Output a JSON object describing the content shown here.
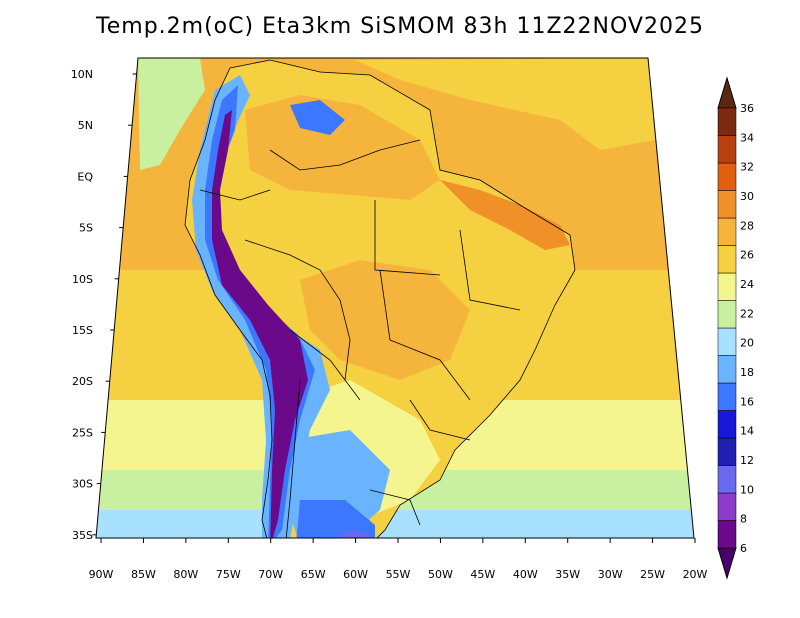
{
  "title": "Temp.2m(oC) Eta3km SiSMOM 83h 11Z22NOV2025",
  "axes": {
    "lon_labels": [
      "90W",
      "85W",
      "80W",
      "75W",
      "70W",
      "65W",
      "60W",
      "55W",
      "50W",
      "45W",
      "40W",
      "35W",
      "30W",
      "25W",
      "20W"
    ],
    "lat_labels": [
      "10N",
      "5N",
      "EQ",
      "5S",
      "10S",
      "15S",
      "20S",
      "25S",
      "30S",
      "35S"
    ]
  },
  "colorbar": {
    "labels": [
      "6",
      "8",
      "10",
      "12",
      "14",
      "16",
      "18",
      "20",
      "22",
      "24",
      "26",
      "28",
      "30",
      "32",
      "34",
      "36"
    ],
    "colors": [
      "#6a0a8a",
      "#8c3cc8",
      "#6a6af0",
      "#2020b0",
      "#1818d8",
      "#3c78ff",
      "#6ab4ff",
      "#a8e0ff",
      "#c8f0a0",
      "#f5f590",
      "#f5d040",
      "#f5b43c",
      "#f09028",
      "#e06010",
      "#b84010",
      "#7a2a10"
    ],
    "low_arrow_color": "#4a0070",
    "high_arrow_color": "#5a2a10"
  },
  "palette": {
    "ocean_warm": "#f5b43c",
    "ocean_mid": "#f5d040",
    "ocean_cool": "#f5f590",
    "ocean_cold": "#c8f0a0",
    "ocean_south": "#a8e0ff",
    "land_main": "#f5d040",
    "land_hot": "#f5b43c",
    "land_hotter": "#f09028",
    "andes_high": "#6a0a8a",
    "andes_mid": "#3c78ff",
    "andes_low": "#6ab4ff",
    "patagonia": "#a8e0ff",
    "border": "#000000"
  }
}
